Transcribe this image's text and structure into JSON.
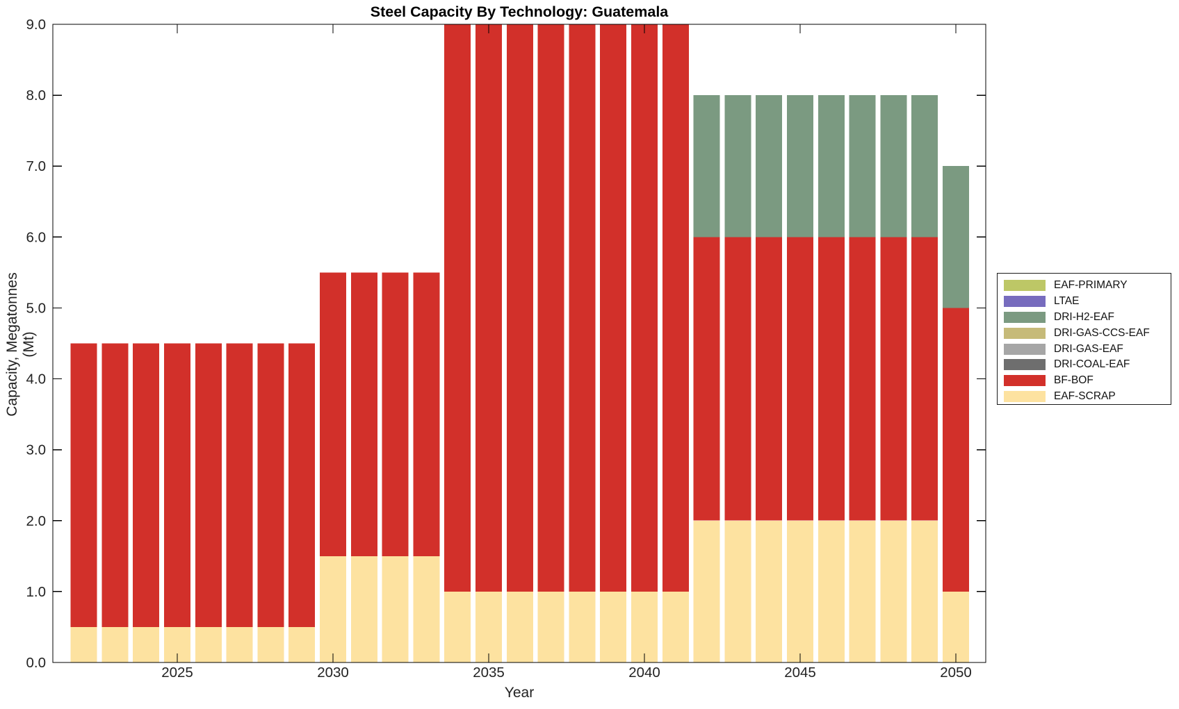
{
  "chart": {
    "title": "Steel Capacity By Technology: Guatemala",
    "xlabel": "Year",
    "ylabel": "Capacity, Megatonnes (Mt)"
  },
  "chart_data": {
    "type": "bar",
    "stacked": true,
    "title": "Steel Capacity By Technology: Guatemala",
    "xlabel": "Year",
    "ylabel": "Capacity, Megatonnes (Mt)",
    "x": [
      2022,
      2023,
      2024,
      2025,
      2026,
      2027,
      2028,
      2029,
      2030,
      2031,
      2032,
      2033,
      2034,
      2035,
      2036,
      2037,
      2038,
      2039,
      2040,
      2041,
      2042,
      2043,
      2044,
      2045,
      2046,
      2047,
      2048,
      2049,
      2050
    ],
    "series": [
      {
        "name": "EAF-SCRAP",
        "color": "#fde2a0",
        "values": [
          0.5,
          0.5,
          0.5,
          0.5,
          0.5,
          0.5,
          0.5,
          0.5,
          1.5,
          1.5,
          1.5,
          1.5,
          1,
          1,
          1,
          1,
          1,
          1,
          1,
          1,
          2,
          2,
          2,
          2,
          2,
          2,
          2,
          2,
          1
        ]
      },
      {
        "name": "BF-BOF",
        "color": "#d2302a",
        "values": [
          4,
          4,
          4,
          4,
          4,
          4,
          4,
          4,
          4,
          4,
          4,
          4,
          8,
          8,
          8,
          8,
          8,
          8,
          8,
          8,
          4,
          4,
          4,
          4,
          4,
          4,
          4,
          4,
          4
        ]
      },
      {
        "name": "DRI-COAL-EAF",
        "color": "#6e6e6e",
        "values": [
          0,
          0,
          0,
          0,
          0,
          0,
          0,
          0,
          0,
          0,
          0,
          0,
          0,
          0,
          0,
          0,
          0,
          0,
          0,
          0,
          0,
          0,
          0,
          0,
          0,
          0,
          0,
          0,
          0
        ]
      },
      {
        "name": "DRI-GAS-EAF",
        "color": "#a6a6a6",
        "values": [
          0,
          0,
          0,
          0,
          0,
          0,
          0,
          0,
          0,
          0,
          0,
          0,
          0,
          0,
          0,
          0,
          0,
          0,
          0,
          0,
          0,
          0,
          0,
          0,
          0,
          0,
          0,
          0,
          0
        ]
      },
      {
        "name": "DRI-GAS-CCS-EAF",
        "color": "#c6ba79",
        "values": [
          0,
          0,
          0,
          0,
          0,
          0,
          0,
          0,
          0,
          0,
          0,
          0,
          0,
          0,
          0,
          0,
          0,
          0,
          0,
          0,
          0,
          0,
          0,
          0,
          0,
          0,
          0,
          0,
          0
        ]
      },
      {
        "name": "DRI-H2-EAF",
        "color": "#7b9a81",
        "values": [
          0,
          0,
          0,
          0,
          0,
          0,
          0,
          0,
          0,
          0,
          0,
          0,
          0,
          0,
          0,
          0,
          0,
          0,
          0,
          0,
          2,
          2,
          2,
          2,
          2,
          2,
          2,
          2,
          2
        ]
      },
      {
        "name": "LTAE",
        "color": "#776cbe",
        "values": [
          0,
          0,
          0,
          0,
          0,
          0,
          0,
          0,
          0,
          0,
          0,
          0,
          0,
          0,
          0,
          0,
          0,
          0,
          0,
          0,
          0,
          0,
          0,
          0,
          0,
          0,
          0,
          0,
          0
        ]
      },
      {
        "name": "EAF-PRIMARY",
        "color": "#bdc766",
        "values": [
          0,
          0,
          0,
          0,
          0,
          0,
          0,
          0,
          0,
          0,
          0,
          0,
          0,
          0,
          0,
          0,
          0,
          0,
          0,
          0,
          0,
          0,
          0,
          0,
          0,
          0,
          0,
          0,
          0
        ]
      }
    ],
    "legend_order": [
      "EAF-PRIMARY",
      "LTAE",
      "DRI-H2-EAF",
      "DRI-GAS-CCS-EAF",
      "DRI-GAS-EAF",
      "DRI-COAL-EAF",
      "BF-BOF",
      "EAF-SCRAP"
    ],
    "legend_position": "right-outside",
    "ylim": [
      0,
      9
    ],
    "ytick_labels": [
      "0.0",
      "1.0",
      "2.0",
      "3.0",
      "4.0",
      "5.0",
      "6.0",
      "7.0",
      "8.0",
      "9.0"
    ],
    "xticks": [
      2025,
      2030,
      2035,
      2040,
      2045,
      2050
    ],
    "grid": false,
    "axis_color": "#000000",
    "tick_label_color": "#232323"
  }
}
